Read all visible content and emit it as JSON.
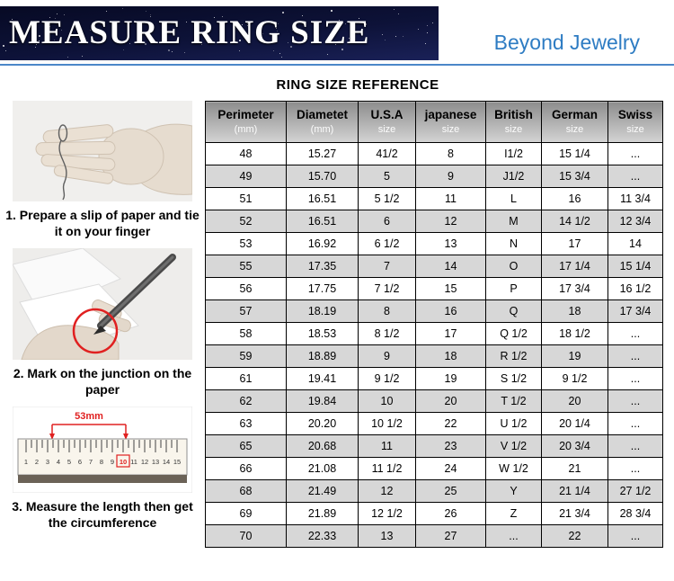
{
  "header": {
    "banner_title": "MEASURE RING SIZE",
    "brand": "Beyond Jewelry"
  },
  "table": {
    "title": "RING SIZE REFERENCE",
    "columns": [
      {
        "label": "Perimeter",
        "sub": "(mm)"
      },
      {
        "label": "Diametet",
        "sub": "(mm)"
      },
      {
        "label": "U.S.A",
        "sub": "size"
      },
      {
        "label": "japanese",
        "sub": "size"
      },
      {
        "label": "British",
        "sub": "size"
      },
      {
        "label": "German",
        "sub": "size"
      },
      {
        "label": "Swiss",
        "sub": "size"
      }
    ],
    "rows": [
      [
        "48",
        "15.27",
        "41/2",
        "8",
        "I1/2",
        "15 1/4",
        "..."
      ],
      [
        "49",
        "15.70",
        "5",
        "9",
        "J1/2",
        "15 3/4",
        "..."
      ],
      [
        "51",
        "16.51",
        "5 1/2",
        "11",
        "L",
        "16",
        "11 3/4"
      ],
      [
        "52",
        "16.51",
        "6",
        "12",
        "M",
        "14 1/2",
        "12 3/4"
      ],
      [
        "53",
        "16.92",
        "6 1/2",
        "13",
        "N",
        "17",
        "14"
      ],
      [
        "55",
        "17.35",
        "7",
        "14",
        "O",
        "17 1/4",
        "15 1/4"
      ],
      [
        "56",
        "17.75",
        "7 1/2",
        "15",
        "P",
        "17 3/4",
        "16 1/2"
      ],
      [
        "57",
        "18.19",
        "8",
        "16",
        "Q",
        "18",
        "17 3/4"
      ],
      [
        "58",
        "18.53",
        "8 1/2",
        "17",
        "Q 1/2",
        "18 1/2",
        "..."
      ],
      [
        "59",
        "18.89",
        "9",
        "18",
        "R 1/2",
        "19",
        "..."
      ],
      [
        "61",
        "19.41",
        "9 1/2",
        "19",
        "S 1/2",
        "9 1/2",
        "..."
      ],
      [
        "62",
        "19.84",
        "10",
        "20",
        "T 1/2",
        "20",
        "..."
      ],
      [
        "63",
        "20.20",
        "10 1/2",
        "22",
        "U 1/2",
        "20 1/4",
        "..."
      ],
      [
        "65",
        "20.68",
        "11",
        "23",
        "V 1/2",
        "20 3/4",
        "..."
      ],
      [
        "66",
        "21.08",
        "11 1/2",
        "24",
        "W 1/2",
        "21",
        "..."
      ],
      [
        "68",
        "21.49",
        "12",
        "25",
        "Y",
        "21 1/4",
        "27 1/2"
      ],
      [
        "69",
        "21.89",
        "12 1/2",
        "26",
        "Z",
        "21 3/4",
        "28 3/4"
      ],
      [
        "70",
        "22.33",
        "13",
        "27",
        "...",
        "22",
        "..."
      ]
    ]
  },
  "steps": [
    {
      "text": "1. Prepare a slip of paper and tie it on your finger"
    },
    {
      "text": "2. Mark on the junction on the paper"
    },
    {
      "text": "3. Measure the length then get the circumference"
    }
  ],
  "ruler": {
    "label": "53mm",
    "numbers": [
      "1",
      "2",
      "3",
      "4",
      "5",
      "6",
      "7",
      "8",
      "9",
      "10",
      "11",
      "12",
      "13",
      "14",
      "15"
    ]
  },
  "colors": {
    "accent_blue": "#2e7cc3",
    "banner_navy": "#0d1238",
    "highlight_red": "#e02020",
    "row_alt_gray": "#d7d7d7"
  }
}
